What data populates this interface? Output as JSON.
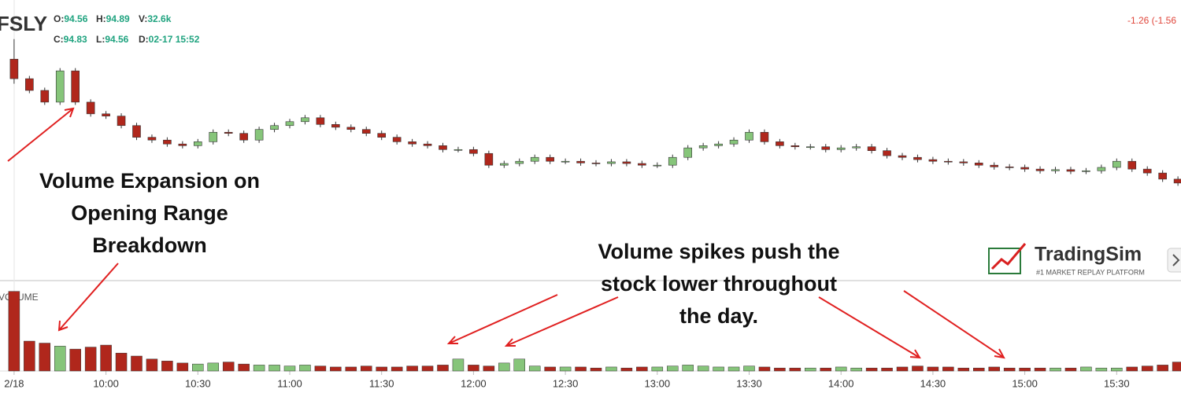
{
  "chart_data": {
    "type": "candlestick",
    "symbol": "FSLY",
    "legend_fields": [
      {
        "label": "O:",
        "value": 94.56
      },
      {
        "label": "H:",
        "value": 94.89
      },
      {
        "label": "V:",
        "value": "32.6k"
      },
      {
        "label": "C:",
        "value": 94.83
      },
      {
        "label": "L:",
        "value": 94.56
      },
      {
        "label": "D:",
        "value": "02-17 15:52"
      }
    ],
    "change": "-1.26 (-1.56",
    "volume_label": "VOLUME",
    "up_color": "#86c57a",
    "down_color": "#b0271c",
    "x": [
      0,
      5,
      10,
      15,
      20,
      25,
      30,
      35,
      40,
      45,
      50,
      55,
      60,
      65,
      70,
      75,
      80,
      85,
      90,
      95,
      100,
      105,
      110,
      115,
      120,
      125,
      130,
      135,
      140,
      145,
      150,
      155,
      160,
      165,
      170,
      175,
      180,
      185,
      190,
      195,
      200,
      205,
      210,
      215,
      220,
      225,
      230,
      235,
      240,
      245,
      250,
      255,
      260,
      265,
      270,
      275,
      280,
      285,
      290,
      295,
      300,
      305,
      310,
      315,
      320,
      325,
      330,
      335,
      340,
      345,
      350,
      355,
      360,
      365,
      370,
      375,
      380
    ],
    "xlim": [
      -4.6,
      381
    ],
    "xticks": [
      {
        "value": 0,
        "label": "2/18"
      },
      {
        "value": 30,
        "label": "10:00"
      },
      {
        "value": 60,
        "label": "10:30"
      },
      {
        "value": 90,
        "label": "11:00"
      },
      {
        "value": 120,
        "label": "11:30"
      },
      {
        "value": 150,
        "label": "12:00"
      },
      {
        "value": 180,
        "label": "12:30"
      },
      {
        "value": 210,
        "label": "13:00"
      },
      {
        "value": 240,
        "label": "13:30"
      },
      {
        "value": 270,
        "label": "14:00"
      },
      {
        "value": 300,
        "label": "14:30"
      },
      {
        "value": 330,
        "label": "15:00"
      },
      {
        "value": 360,
        "label": "15:30"
      }
    ],
    "ylim": [
      92.0,
      97.0
    ],
    "open": [
      95.94,
      95.59,
      95.38,
      95.17,
      95.73,
      95.17,
      94.96,
      94.92,
      94.75,
      94.54,
      94.49,
      94.42,
      94.39,
      94.46,
      94.63,
      94.61,
      94.49,
      94.68,
      94.75,
      94.82,
      94.89,
      94.77,
      94.72,
      94.68,
      94.61,
      94.54,
      94.46,
      94.42,
      94.39,
      94.32,
      94.32,
      94.25,
      94.04,
      94.07,
      94.11,
      94.18,
      94.11,
      94.11,
      94.08,
      94.07,
      94.1,
      94.07,
      94.04,
      94.04,
      94.18,
      94.35,
      94.39,
      94.42,
      94.49,
      94.63,
      94.46,
      94.39,
      94.37,
      94.37,
      94.32,
      94.35,
      94.37,
      94.3,
      94.21,
      94.18,
      94.14,
      94.11,
      94.1,
      94.08,
      94.04,
      94.01,
      94.0,
      93.97,
      93.94,
      93.96,
      93.93,
      93.94,
      94.0,
      94.11,
      93.97,
      93.9,
      93.79
    ],
    "high": [
      96.3,
      95.64,
      95.43,
      95.78,
      95.78,
      95.22,
      95.01,
      94.97,
      94.8,
      94.59,
      94.54,
      94.47,
      94.51,
      94.68,
      94.68,
      94.66,
      94.73,
      94.8,
      94.87,
      94.94,
      94.94,
      94.82,
      94.77,
      94.73,
      94.66,
      94.59,
      94.51,
      94.47,
      94.44,
      94.37,
      94.37,
      94.3,
      94.12,
      94.16,
      94.23,
      94.23,
      94.16,
      94.16,
      94.13,
      94.15,
      94.15,
      94.12,
      94.09,
      94.23,
      94.4,
      94.44,
      94.47,
      94.54,
      94.68,
      94.68,
      94.51,
      94.44,
      94.42,
      94.42,
      94.4,
      94.42,
      94.42,
      94.35,
      94.26,
      94.23,
      94.19,
      94.16,
      94.15,
      94.13,
      94.09,
      94.06,
      94.05,
      94.02,
      94.01,
      94.01,
      93.99,
      94.05,
      94.16,
      94.16,
      94.02,
      93.95,
      93.84
    ],
    "low": [
      95.5,
      95.33,
      95.12,
      95.12,
      95.12,
      94.91,
      94.87,
      94.7,
      94.49,
      94.44,
      94.37,
      94.34,
      94.34,
      94.41,
      94.56,
      94.44,
      94.44,
      94.63,
      94.7,
      94.77,
      94.72,
      94.67,
      94.63,
      94.56,
      94.49,
      94.41,
      94.37,
      94.34,
      94.27,
      94.27,
      94.2,
      93.99,
      93.99,
      94.02,
      94.06,
      94.06,
      94.06,
      94.03,
      94.02,
      94.02,
      94.02,
      93.99,
      93.99,
      93.99,
      94.13,
      94.3,
      94.34,
      94.37,
      94.44,
      94.41,
      94.34,
      94.32,
      94.32,
      94.27,
      94.27,
      94.3,
      94.25,
      94.16,
      94.13,
      94.09,
      94.06,
      94.05,
      94.03,
      93.99,
      93.96,
      93.95,
      93.92,
      93.89,
      93.89,
      93.88,
      93.88,
      93.89,
      93.95,
      93.92,
      93.85,
      93.74,
      93.67
    ],
    "close": [
      95.59,
      95.38,
      95.17,
      95.73,
      95.17,
      94.96,
      94.92,
      94.75,
      94.54,
      94.49,
      94.42,
      94.39,
      94.46,
      94.63,
      94.61,
      94.49,
      94.68,
      94.75,
      94.82,
      94.89,
      94.77,
      94.72,
      94.68,
      94.61,
      94.54,
      94.46,
      94.42,
      94.39,
      94.32,
      94.32,
      94.25,
      94.04,
      94.07,
      94.11,
      94.18,
      94.11,
      94.11,
      94.08,
      94.07,
      94.1,
      94.07,
      94.04,
      94.04,
      94.18,
      94.35,
      94.39,
      94.42,
      94.49,
      94.63,
      94.46,
      94.39,
      94.37,
      94.37,
      94.32,
      94.35,
      94.37,
      94.3,
      94.21,
      94.18,
      94.14,
      94.11,
      94.1,
      94.08,
      94.04,
      94.01,
      94.0,
      93.97,
      93.94,
      93.96,
      93.93,
      93.94,
      94.0,
      94.11,
      93.97,
      93.9,
      93.79,
      93.72
    ],
    "volume": [
      80,
      30,
      28,
      25,
      22,
      24,
      26,
      18,
      15,
      12,
      10,
      8,
      7,
      8,
      9,
      7,
      6,
      6,
      5,
      6,
      5,
      4,
      4,
      5,
      4,
      4,
      5,
      5,
      6,
      12,
      6,
      5,
      8,
      12,
      5,
      4,
      4,
      4,
      3,
      4,
      3,
      4,
      4,
      5,
      6,
      5,
      4,
      4,
      5,
      4,
      3,
      3,
      3,
      3,
      4,
      3,
      3,
      3,
      4,
      5,
      4,
      4,
      3,
      3,
      4,
      3,
      3,
      3,
      3,
      3,
      4,
      3,
      3,
      4,
      5,
      6,
      9
    ],
    "volume_ylim": [
      0,
      90
    ],
    "annotations": [
      {
        "lines": [
          "Volume Expansion on",
          "Opening Range",
          "Breakdown"
        ]
      },
      {
        "lines": [
          "Volume spikes push the",
          "stock lower throughout",
          "the day."
        ]
      }
    ],
    "logo": {
      "name": "TradingSim",
      "tagline": "#1 MARKET REPLAY PLATFORM"
    }
  }
}
